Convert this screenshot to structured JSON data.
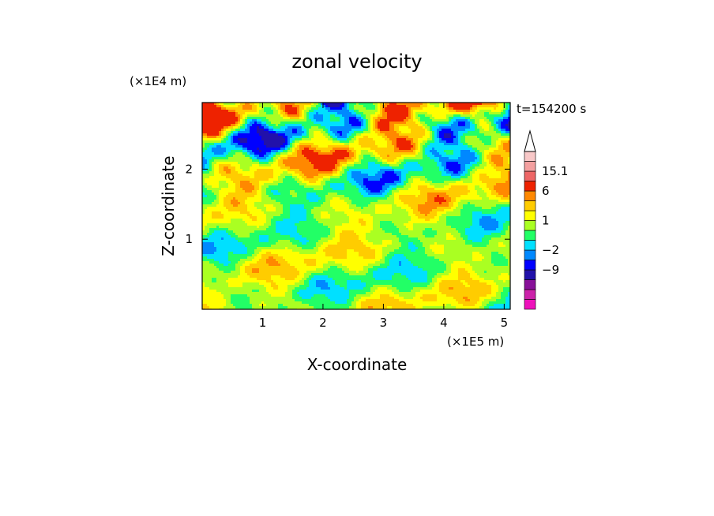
{
  "chart_data": {
    "type": "heatmap",
    "title": "zonal velocity",
    "xlabel": "X-coordinate",
    "ylabel": "Z-coordinate",
    "x_scale_label": "(×1E5 m)",
    "y_scale_label": "(×1E4 m)",
    "time_label": "t=154200 s",
    "xlim": [
      0,
      5.1
    ],
    "ylim": [
      0,
      2.95
    ],
    "x_ticks": [
      {
        "value": 1,
        "label": "1"
      },
      {
        "value": 2,
        "label": "2"
      },
      {
        "value": 3,
        "label": "3"
      },
      {
        "value": 4,
        "label": "4"
      },
      {
        "value": 5,
        "label": "5"
      }
    ],
    "y_ticks": [
      {
        "value": 1,
        "label": "1"
      },
      {
        "value": 2,
        "label": "2"
      }
    ],
    "colorbar": {
      "levels": [
        {
          "color": "#ee11bb"
        },
        {
          "color": "#cc22aa"
        },
        {
          "color": "#881199"
        },
        {
          "color": "#2211aa",
          "label": "−9"
        },
        {
          "color": "#0000ff"
        },
        {
          "color": "#0088ff",
          "label": "−2"
        },
        {
          "color": "#00e0ff"
        },
        {
          "color": "#22ff66"
        },
        {
          "color": "#aaff22",
          "label": "1"
        },
        {
          "color": "#ffff00"
        },
        {
          "color": "#ffcc00"
        },
        {
          "color": "#ff8800",
          "label": "6"
        },
        {
          "color": "#ee2200"
        },
        {
          "color": "#ee6666",
          "label": "15.1"
        },
        {
          "color": "#f4a0a0"
        },
        {
          "color": "#f8c8c8"
        }
      ],
      "triangle_color": "#ffffff"
    },
    "colors": {
      "background": "#ffffff",
      "axis": "#000000"
    }
  }
}
